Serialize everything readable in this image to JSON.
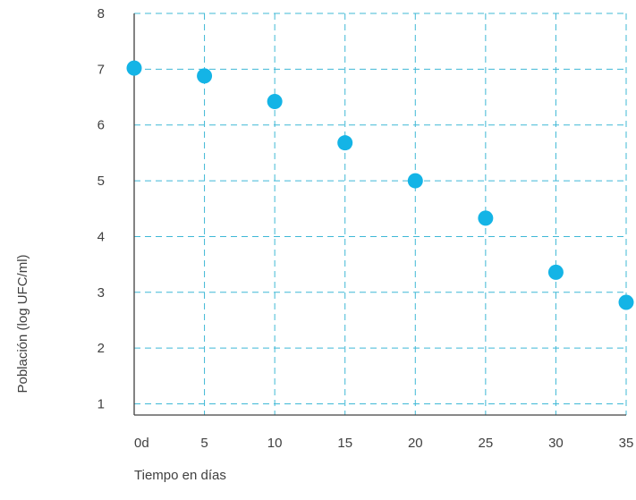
{
  "chart_data": {
    "type": "scatter",
    "title": "",
    "xlabel": "Tiempo en días",
    "ylabel": "Población (log UFC/ml)",
    "x_tick_labels": [
      "0d",
      "5",
      "10",
      "15",
      "20",
      "25",
      "30",
      "35"
    ],
    "x_ticks": [
      0,
      5,
      10,
      15,
      20,
      25,
      30,
      35
    ],
    "y_ticks": [
      1,
      2,
      3,
      4,
      5,
      6,
      7,
      8
    ],
    "xlim": [
      0,
      35
    ],
    "ylim": [
      0.8,
      8
    ],
    "grid": true,
    "grid_style": "dashed",
    "legend": "none",
    "series": [
      {
        "color": "#14b4e6",
        "x": [
          0,
          5,
          10,
          15,
          20,
          25,
          30,
          35
        ],
        "y": [
          7.02,
          6.88,
          6.42,
          5.68,
          5.0,
          4.33,
          3.36,
          2.82
        ]
      }
    ]
  },
  "colors": {
    "grid": "#3fb8d6",
    "axis": "#404040",
    "text": "#404040"
  }
}
